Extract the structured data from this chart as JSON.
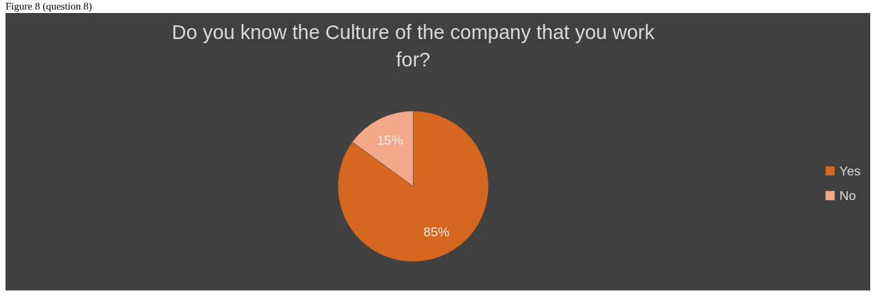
{
  "chart_data": {
    "type": "pie",
    "title": "Do you know the Culture of the company that you work for?",
    "categories": [
      "Yes",
      "No"
    ],
    "values": [
      85,
      15
    ],
    "colors": [
      "#d5671f",
      "#f4a88a"
    ],
    "value_labels": [
      "85%",
      "15%"
    ],
    "legend": "right",
    "annotations": [
      "Figure 8 (question 8)"
    ]
  }
}
